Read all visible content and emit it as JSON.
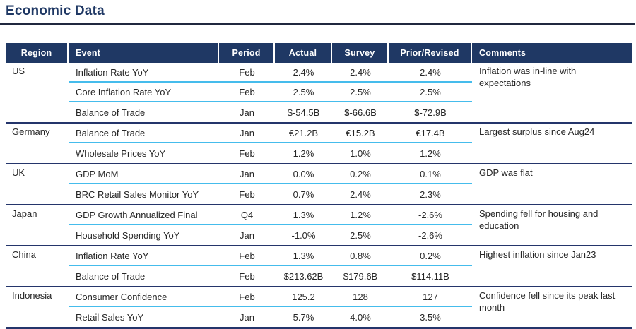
{
  "title": "Economic Data",
  "colors": {
    "header_navy": "#1F3864",
    "separator_navy": "#24356b",
    "row_divider_cyan": "#45BCEC",
    "title_navy": "#1F3864",
    "body_text": "#262626"
  },
  "table": {
    "columns": [
      "Region",
      "Event",
      "Period",
      "Actual",
      "Survey",
      "Prior/Revised",
      "Comments"
    ],
    "groups": [
      {
        "region": "US",
        "comment": "Inflation was in-line with expectations",
        "rows": [
          {
            "event": "Inflation Rate YoY",
            "period": "Feb",
            "actual": "2.4%",
            "survey": "2.4%",
            "prior": "2.4%"
          },
          {
            "event": "Core Inflation Rate YoY",
            "period": "Feb",
            "actual": "2.5%",
            "survey": "2.5%",
            "prior": "2.5%"
          },
          {
            "event": "Balance of Trade",
            "period": "Jan",
            "actual": "$-54.5B",
            "survey": "$-66.6B",
            "prior": "$-72.9B"
          }
        ]
      },
      {
        "region": "Germany",
        "comment": "Largest surplus since Aug24",
        "rows": [
          {
            "event": "Balance of Trade",
            "period": "Jan",
            "actual": "€21.2B",
            "survey": "€15.2B",
            "prior": "€17.4B"
          },
          {
            "event": "Wholesale Prices YoY",
            "period": "Feb",
            "actual": "1.2%",
            "survey": "1.0%",
            "prior": "1.2%"
          }
        ]
      },
      {
        "region": "UK",
        "comment": "GDP was flat",
        "rows": [
          {
            "event": "GDP MoM",
            "period": "Jan",
            "actual": "0.0%",
            "survey": "0.2%",
            "prior": "0.1%"
          },
          {
            "event": "BRC Retail Sales Monitor YoY",
            "period": "Feb",
            "actual": "0.7%",
            "survey": "2.4%",
            "prior": "2.3%"
          }
        ]
      },
      {
        "region": "Japan",
        "comment": "Spending fell for housing and education",
        "rows": [
          {
            "event": "GDP Growth Annualized Final",
            "period": "Q4",
            "actual": "1.3%",
            "survey": "1.2%",
            "prior": "-2.6%"
          },
          {
            "event": "Household Spending YoY",
            "period": "Jan",
            "actual": "-1.0%",
            "survey": "2.5%",
            "prior": "-2.6%"
          }
        ]
      },
      {
        "region": "China",
        "comment": "Highest inflation since Jan23",
        "rows": [
          {
            "event": "Inflation Rate YoY",
            "period": "Feb",
            "actual": "1.3%",
            "survey": "0.8%",
            "prior": "0.2%"
          },
          {
            "event": "Balance of Trade",
            "period": "Feb",
            "actual": "$213.62B",
            "survey": "$179.6B",
            "prior": "$114.11B"
          }
        ]
      },
      {
        "region": "Indonesia",
        "comment": "Confidence fell since its peak last month",
        "rows": [
          {
            "event": "Consumer Confidence",
            "period": "Feb",
            "actual": "125.2",
            "survey": "128",
            "prior": "127"
          },
          {
            "event": "Retail Sales YoY",
            "period": "Jan",
            "actual": "5.7%",
            "survey": "4.0%",
            "prior": "3.5%"
          }
        ]
      }
    ]
  }
}
